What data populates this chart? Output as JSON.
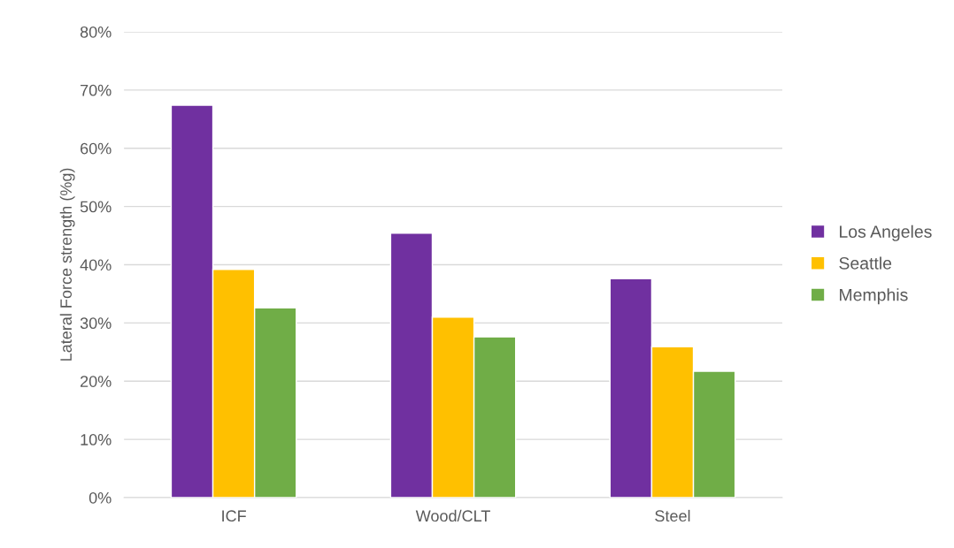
{
  "chart_data": {
    "type": "bar",
    "ylabel": "Lateral Force strength (%g)",
    "categories": [
      "ICF",
      "Wood/CLT",
      "Steel"
    ],
    "series": [
      {
        "name": "Los Angeles",
        "color": "#7030a0",
        "values": [
          67.4,
          45.4,
          37.6
        ]
      },
      {
        "name": "Seattle",
        "color": "#ffc000",
        "values": [
          39.2,
          31.0,
          25.9
        ]
      },
      {
        "name": "Memphis",
        "color": "#70ad47",
        "values": [
          32.6,
          27.6,
          21.7
        ]
      }
    ],
    "ylim": [
      0,
      80
    ],
    "yticks": [
      {
        "value": 0,
        "label": "0%"
      },
      {
        "value": 10,
        "label": "10%"
      },
      {
        "value": 20,
        "label": "20%"
      },
      {
        "value": 30,
        "label": "30%"
      },
      {
        "value": 40,
        "label": "40%"
      },
      {
        "value": 50,
        "label": "50%"
      },
      {
        "value": 60,
        "label": "60%"
      },
      {
        "value": 70,
        "label": "70%"
      },
      {
        "value": 80,
        "label": "80%"
      }
    ],
    "grid": "y",
    "legend": "right"
  }
}
